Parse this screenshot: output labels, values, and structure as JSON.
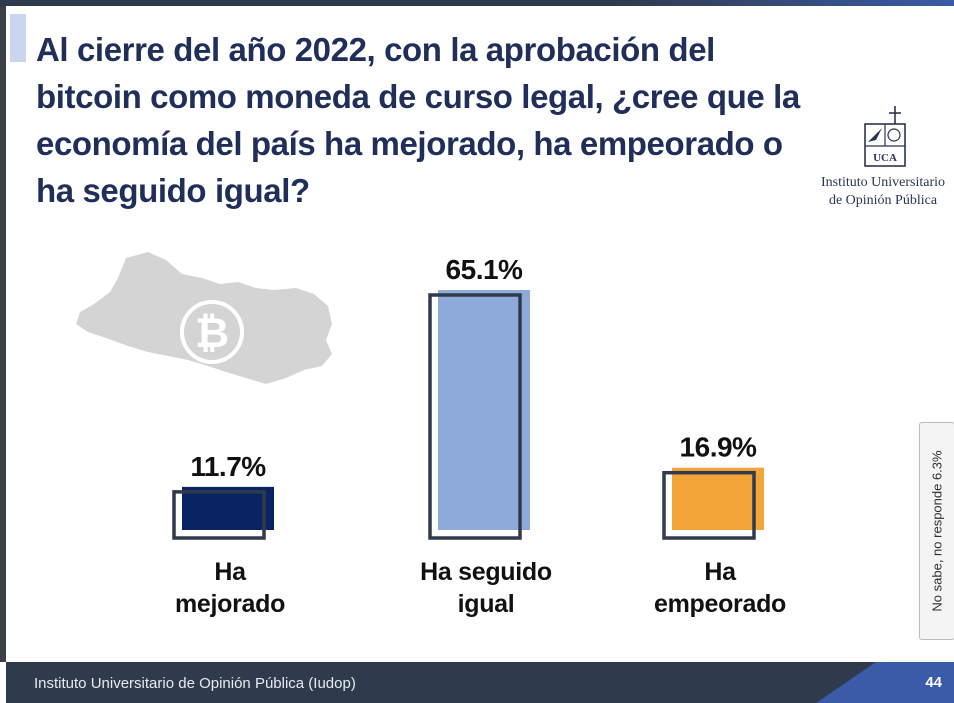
{
  "title": "Al cierre del año 2022, con la aprobación del bitcoin como moneda de curso legal, ¿cree que la economía del país ha mejorado, ha empeorado o ha seguido igual?",
  "logo": {
    "text_line1": "Instituto Universitario",
    "text_line2": "de Opinión Pública",
    "mark_letters": "UCA"
  },
  "illustration": {
    "icon": "bitcoin-icon",
    "map": "el-salvador-map"
  },
  "side_note": "No sabe, no responde 6.3%",
  "footer": {
    "source": "Instituto Universitario de Opinión Pública (Iudop)",
    "page_number": "44"
  },
  "colors": {
    "title": "#1f2f5a",
    "bar_mejorado": "#0a2463",
    "bar_igual": "#8eaadb",
    "bar_empeorado": "#f4a53a",
    "bar_outline": "#2f3b4c",
    "footer": "#2f3b4c",
    "footer_accent": "#3a5ba8"
  },
  "chart_data": {
    "type": "bar",
    "title": "",
    "xlabel": "",
    "ylabel": "",
    "categories": [
      "Ha mejorado",
      "Ha seguido igual",
      "Ha empeorado"
    ],
    "category_lines": [
      [
        "Ha",
        "mejorado"
      ],
      [
        "Ha seguido",
        "igual"
      ],
      [
        "Ha",
        "empeorado"
      ]
    ],
    "values": [
      11.7,
      65.1,
      16.9
    ],
    "value_labels": [
      "11.7%",
      "65.1%",
      "16.9%"
    ],
    "unit": "%",
    "ylim": [
      0,
      70
    ],
    "grid": false,
    "legend": "none"
  }
}
